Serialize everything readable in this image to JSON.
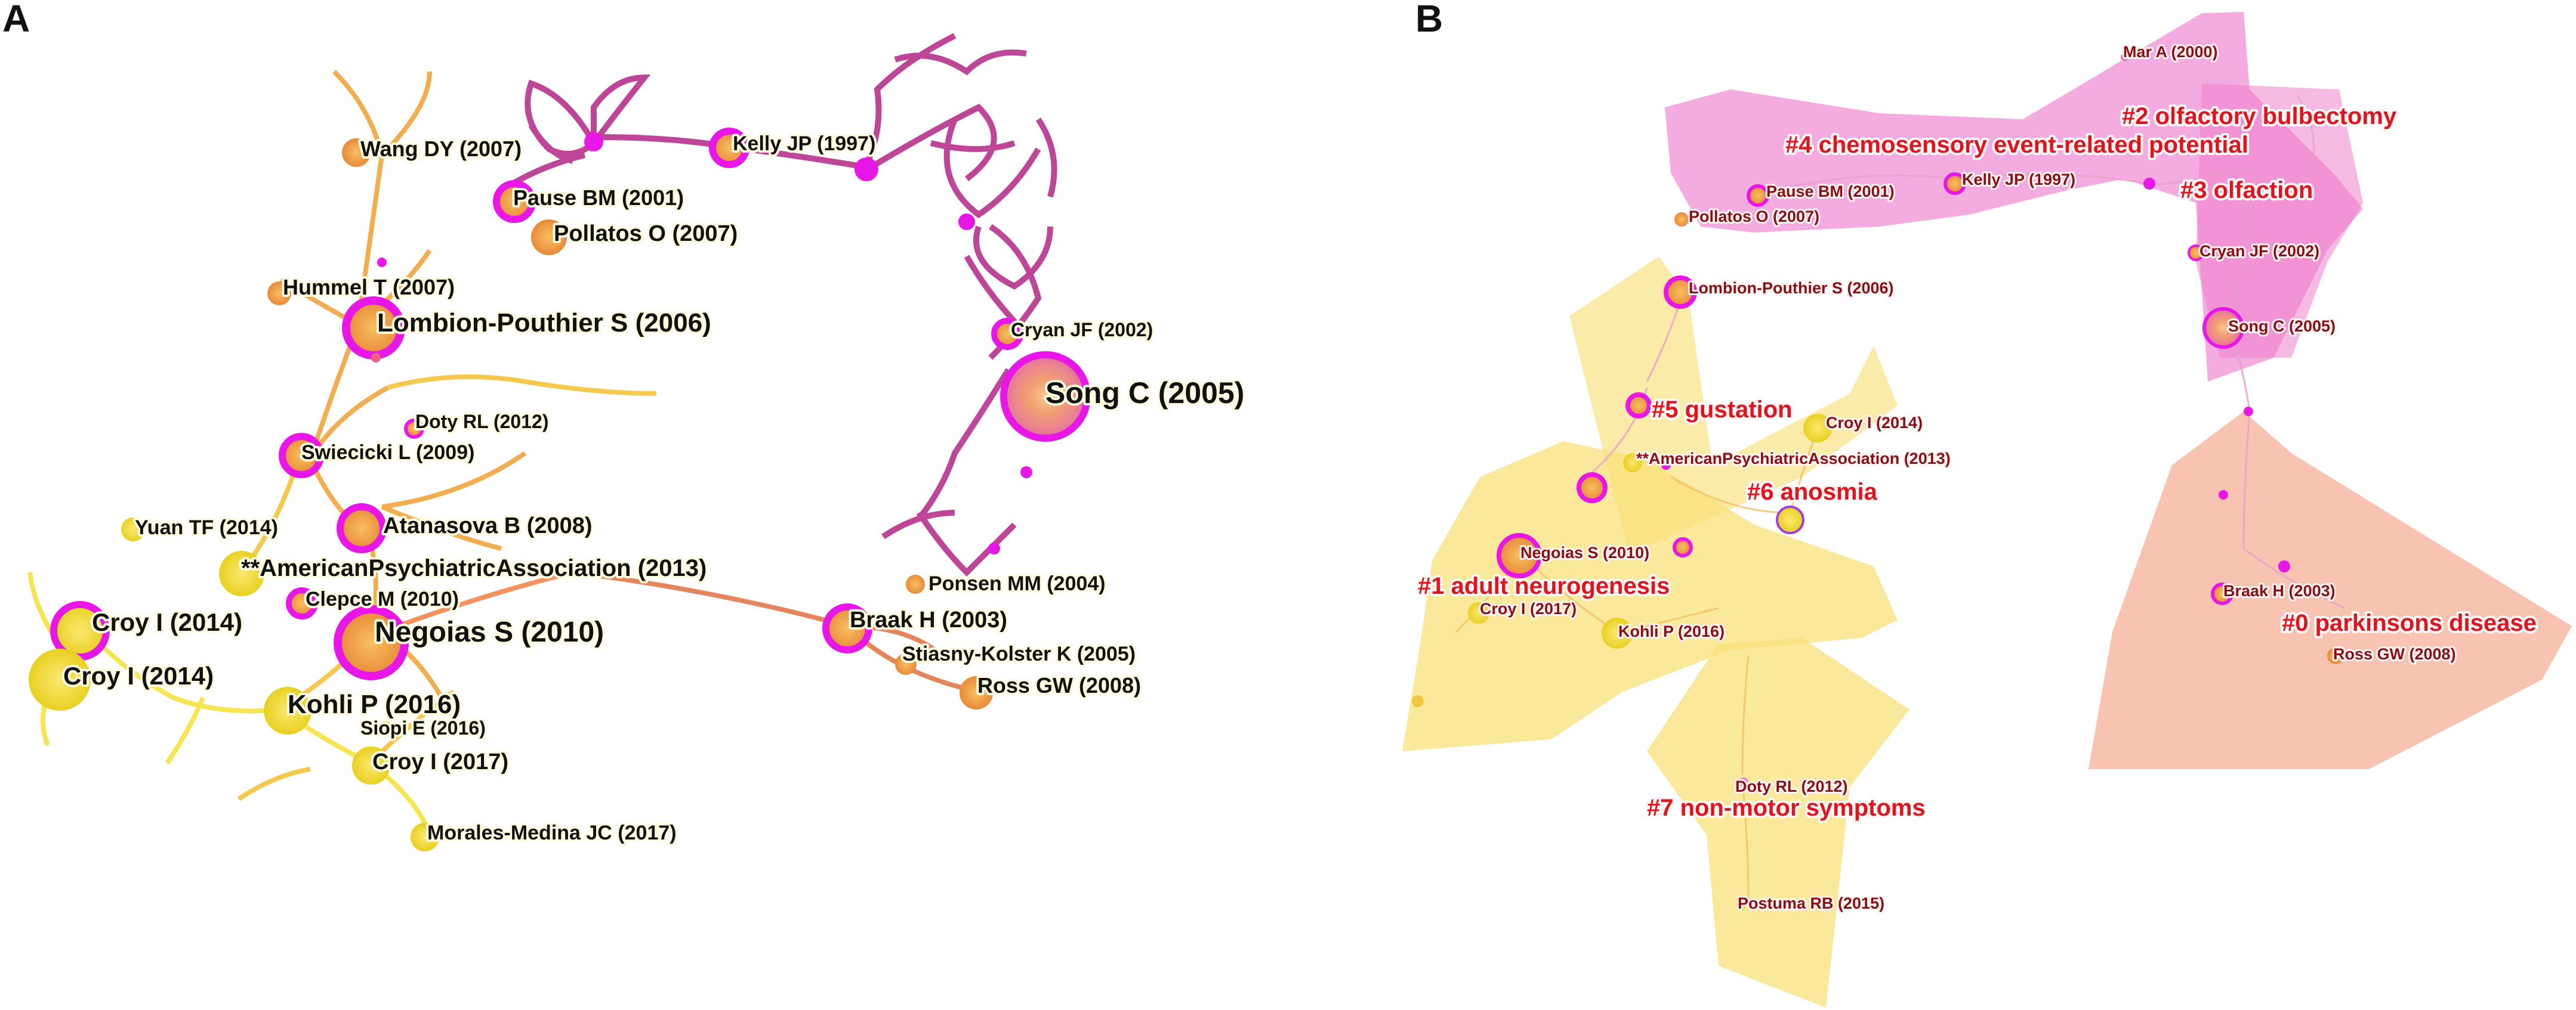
{
  "panels": {
    "a": {
      "letter": "A",
      "node_labels": [
        "Wang DY (2007)",
        "Kelly JP (1997)",
        "Pause BM (2001)",
        "Pollatos O (2007)",
        "Hummel T (2007)",
        "Lombion-Pouthier S (2006)",
        "Cryan JF (2002)",
        "Song C (2005)",
        "Doty RL (2012)",
        "Swiecicki L (2009)",
        "Atanasova B (2008)",
        "Yuan TF (2014)",
        "**AmericanPsychiatricAssociation (2013)",
        "Clepce M (2010)",
        "Ponsen MM (2004)",
        "Croy I (2014)",
        "Negoias S (2010)",
        "Braak H (2003)",
        "Croy I (2014)",
        "Stiasny-Kolster K (2005)",
        "Ross GW (2008)",
        "Kohli P (2016)",
        "Siopi E (2016)",
        "Croy I (2017)",
        "Morales-Medina JC (2017)"
      ]
    },
    "b": {
      "letter": "B",
      "cluster_labels": [
        "#4 chemosensory event-related potential",
        "#2 olfactory bulbectomy",
        "#3 olfaction",
        "#5 gustation",
        "#6 anosmia",
        "#1 adult neurogenesis",
        "#0 parkinsons disease",
        "#7 non-motor symptoms"
      ],
      "node_labels": [
        "Mar A (2000)",
        "Pause BM (2001)",
        "Kelly JP (1997)",
        "Pollatos O (2007)",
        "Cryan JF (2002)",
        "Lombion-Pouthier S (2006)",
        "Song C (2005)",
        "Croy I (2014)",
        "**AmericanPsychiatricAssociation (2013)",
        "Negoias S (2010)",
        "Croy I (2017)",
        "Kohli P (2016)",
        "Braak H (2003)",
        "Ross GW (2008)",
        "Doty RL (2012)",
        "Postuma RB (2015)"
      ]
    }
  },
  "colors": {
    "burst_ring": "#e817e8",
    "purple_cluster": "#b8338f",
    "orange": "#f0a030",
    "yellow": "#f5e033",
    "cluster_label": "#e0141e",
    "node_label_b": "#8a0f14",
    "pink_hull": "#f08fd6",
    "orange_hull": "#f6b49c",
    "yellow_hull": "#f8e07a"
  }
}
